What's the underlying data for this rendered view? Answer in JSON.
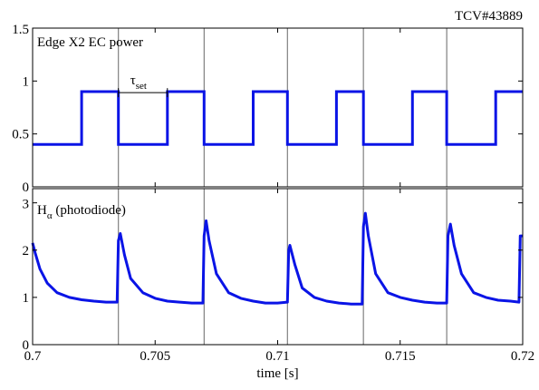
{
  "figure": {
    "shot_label": "TCV#43889"
  },
  "chart_data": [
    {
      "type": "line",
      "panel": "top",
      "label_text": "Edge X2 EC power",
      "annotation": {
        "symbol": "τ",
        "subscript": "set",
        "x_start": 0.7035,
        "x_end": 0.7055,
        "y": 0.89
      },
      "xlim": [
        0.7,
        0.72
      ],
      "ylim": [
        0,
        1.5
      ],
      "yticks": [
        0,
        0.5,
        1,
        1.5
      ],
      "ytick_labels": [
        "0",
        "0.5",
        "1",
        "1.5"
      ],
      "series": [
        {
          "color": "#0a14e6",
          "x": [
            0.7,
            0.702,
            0.702,
            0.7035,
            0.7035,
            0.7055,
            0.7055,
            0.707,
            0.707,
            0.709,
            0.709,
            0.7104,
            0.7104,
            0.7124,
            0.7124,
            0.7135,
            0.7135,
            0.7155,
            0.7155,
            0.7169,
            0.7169,
            0.7189,
            0.7189,
            0.72
          ],
          "y": [
            0.4,
            0.4,
            0.9,
            0.9,
            0.4,
            0.4,
            0.9,
            0.9,
            0.4,
            0.4,
            0.9,
            0.9,
            0.4,
            0.4,
            0.9,
            0.9,
            0.4,
            0.4,
            0.9,
            0.9,
            0.4,
            0.4,
            0.9,
            0.9
          ]
        }
      ]
    },
    {
      "type": "line",
      "panel": "bottom",
      "label_text": "H",
      "label_sub": "α",
      "label_suffix": " (photodiode)",
      "xlim": [
        0.7,
        0.72
      ],
      "ylim": [
        0,
        3.3
      ],
      "yticks": [
        0,
        1,
        2,
        3
      ],
      "ytick_labels": [
        "0",
        "1",
        "2",
        "3"
      ],
      "xlabel": "time [s]",
      "xticks": [
        0.7,
        0.705,
        0.71,
        0.715,
        0.72
      ],
      "xtick_labels": [
        "0.7",
        "0.705",
        "0.71",
        "0.715",
        "0.72"
      ],
      "series": [
        {
          "color": "#0a14e6",
          "x": [
            0.7,
            0.7001,
            0.7003,
            0.7006,
            0.701,
            0.7015,
            0.702,
            0.7025,
            0.703,
            0.70345,
            0.7035,
            0.70358,
            0.70375,
            0.704,
            0.7045,
            0.705,
            0.7055,
            0.706,
            0.7065,
            0.70695,
            0.707,
            0.70708,
            0.7072,
            0.7075,
            0.708,
            0.7085,
            0.709,
            0.7095,
            0.71,
            0.7104,
            0.71045,
            0.7105,
            0.7107,
            0.711,
            0.7115,
            0.712,
            0.7125,
            0.713,
            0.71345,
            0.7135,
            0.71358,
            0.7137,
            0.714,
            0.7145,
            0.715,
            0.7155,
            0.716,
            0.7165,
            0.7169,
            0.71695,
            0.71705,
            0.7172,
            0.7175,
            0.718,
            0.7185,
            0.719,
            0.7195,
            0.71985,
            0.7199,
            0.72
          ],
          "y": [
            2.15,
            1.95,
            1.6,
            1.3,
            1.1,
            1.0,
            0.95,
            0.92,
            0.9,
            0.9,
            2.2,
            2.35,
            1.9,
            1.4,
            1.1,
            0.98,
            0.92,
            0.9,
            0.88,
            0.88,
            2.3,
            2.62,
            2.2,
            1.5,
            1.1,
            0.98,
            0.92,
            0.88,
            0.88,
            0.9,
            2.0,
            2.1,
            1.7,
            1.2,
            1.0,
            0.92,
            0.88,
            0.86,
            0.86,
            2.5,
            2.78,
            2.3,
            1.5,
            1.1,
            1.0,
            0.94,
            0.9,
            0.88,
            0.88,
            2.3,
            2.55,
            2.1,
            1.5,
            1.1,
            1.0,
            0.94,
            0.92,
            0.9,
            2.3,
            2.3
          ]
        }
      ]
    }
  ],
  "vlines_x": [
    0.7035,
    0.707,
    0.7104,
    0.7135,
    0.7169
  ]
}
